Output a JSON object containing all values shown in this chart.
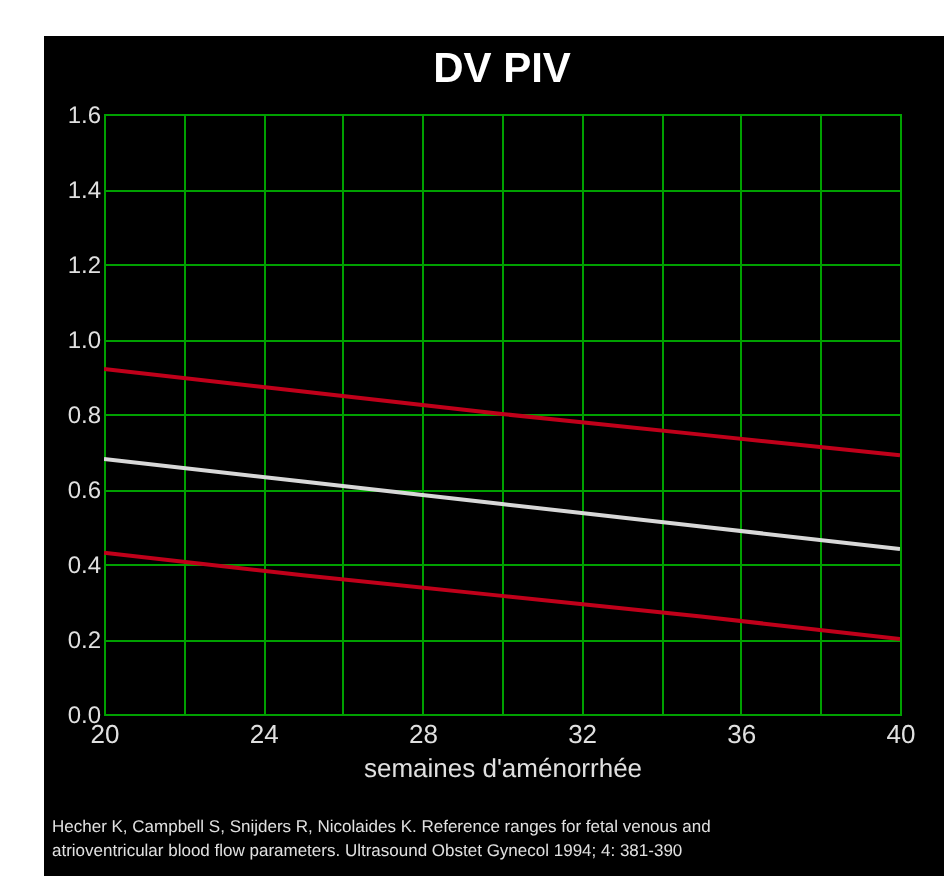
{
  "chart_data": {
    "type": "line",
    "title": "DV PIV",
    "xlabel": "semaines d'aménorrhée",
    "annotations": [
      "Hecher K, Campbell S, Snijders R, Nicolaides K. Reference ranges for fetal venous and",
      "atrioventricular blood flow parameters. Ultrasound Obstet Gynecol 1994; 4: 381-390"
    ],
    "x": [
      20,
      25,
      30,
      35,
      40
    ],
    "series": [
      {
        "color": "#c0001a",
        "values": [
          0.92,
          0.86,
          0.8,
          0.745,
          0.69
        ]
      },
      {
        "color": "#d8d8d8",
        "values": [
          0.68,
          0.62,
          0.56,
          0.5,
          0.44
        ]
      },
      {
        "color": "#c0001a",
        "values": [
          0.43,
          0.37,
          0.315,
          0.26,
          0.2
        ]
      }
    ],
    "xlim": [
      20,
      40
    ],
    "xticks": [
      20,
      {
        "value": 22,
        "label": null
      },
      24,
      {
        "value": 26,
        "label": null
      },
      28,
      {
        "value": 30,
        "label": null
      },
      32,
      {
        "value": 34,
        "label": null
      },
      36,
      {
        "value": 38,
        "label": null
      },
      40
    ],
    "ylim": [
      0,
      1.6
    ],
    "yticks": [
      {
        "value": 0,
        "label": "0.0"
      },
      0.2,
      0.4,
      0.6,
      0.8,
      {
        "value": 1,
        "label": "1.0"
      },
      1.2,
      1.4,
      1.6
    ],
    "grid": true
  }
}
